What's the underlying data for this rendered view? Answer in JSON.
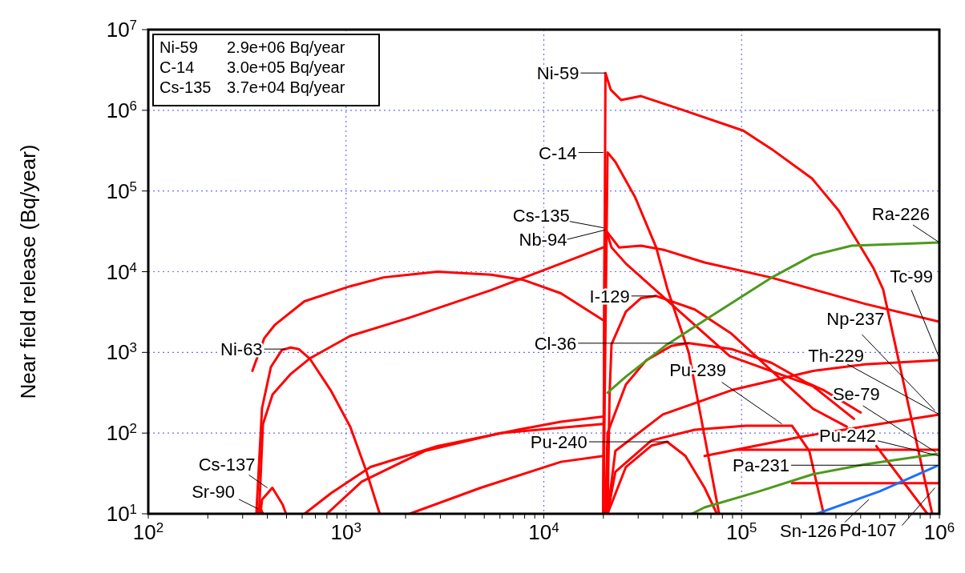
{
  "chart_data": {
    "type": "line",
    "ylabel": "Near field release (Bq/year)",
    "log": "xy",
    "grid": true,
    "marker": "none",
    "line_style": "solid",
    "xlim": [
      100,
      1000000
    ],
    "ylim": [
      10,
      10000000
    ],
    "xticks": [
      {
        "value": 100,
        "label": "10$^{2}$"
      },
      {
        "value": 200,
        "label": null
      },
      {
        "value": 300,
        "label": null
      },
      {
        "value": 400,
        "label": null
      },
      {
        "value": 500,
        "label": null
      },
      {
        "value": 600,
        "label": null
      },
      {
        "value": 700,
        "label": null
      },
      {
        "value": 800,
        "label": null
      },
      {
        "value": 900,
        "label": null
      },
      {
        "value": 1000,
        "label": "10$^{3}$"
      },
      {
        "value": 2000,
        "label": null
      },
      {
        "value": 3000,
        "label": null
      },
      {
        "value": 4000,
        "label": null
      },
      {
        "value": 5000,
        "label": null
      },
      {
        "value": 6000,
        "label": null
      },
      {
        "value": 7000,
        "label": null
      },
      {
        "value": 8000,
        "label": null
      },
      {
        "value": 9000,
        "label": null
      },
      {
        "value": 10000,
        "label": "10$^{4}$"
      },
      {
        "value": 20000,
        "label": null
      },
      {
        "value": 30000,
        "label": null
      },
      {
        "value": 40000,
        "label": null
      },
      {
        "value": 50000,
        "label": null
      },
      {
        "value": 60000,
        "label": null
      },
      {
        "value": 70000,
        "label": null
      },
      {
        "value": 80000,
        "label": null
      },
      {
        "value": 90000,
        "label": null
      },
      {
        "value": 100000,
        "label": "10$^{5}$"
      },
      {
        "value": 200000,
        "label": null
      },
      {
        "value": 300000,
        "label": null
      },
      {
        "value": 400000,
        "label": null
      },
      {
        "value": 500000,
        "label": null
      },
      {
        "value": 600000,
        "label": null
      },
      {
        "value": 700000,
        "label": null
      },
      {
        "value": 800000,
        "label": null
      },
      {
        "value": 900000,
        "label": null
      },
      {
        "value": 1000000,
        "label": "10$^{6}$"
      }
    ],
    "yticks": [
      {
        "value": 10,
        "label": "10$^{1}$"
      },
      {
        "value": 100,
        "label": "10$^{2}$"
      },
      {
        "value": 1000,
        "label": "10$^{3}$"
      },
      {
        "value": 10000,
        "label": "10$^{4}$"
      },
      {
        "value": 100000,
        "label": "10$^{5}$"
      },
      {
        "value": 1000000,
        "label": "10$^{6}$"
      },
      {
        "value": 10000000,
        "label": "10$^{7}$"
      }
    ],
    "series": [
      {
        "color": "#ff0000",
        "x": [
          20000,
          20500,
          21800,
          24600,
          31000,
          51000,
          102000,
          142000,
          227000,
          310000,
          465000,
          520000,
          920000
        ],
        "values": [
          10,
          2900000,
          1800000,
          1340000,
          1500000,
          1000000,
          560000,
          330000,
          143000,
          57000,
          11000,
          6000,
          10
        ]
      },
      {
        "color": "#ff0000",
        "x": [
          20000,
          21000,
          23000,
          29000,
          37000,
          42000,
          54000,
          58000,
          77000
        ],
        "values": [
          10,
          300000,
          230000,
          83000,
          20000,
          6300,
          1000,
          400,
          10
        ]
      },
      {
        "color": "#ff0000",
        "x": [
          20000,
          20300,
          22000,
          26000,
          45000,
          87000,
          230000,
          370000
        ],
        "values": [
          10,
          37000,
          20000,
          12600,
          3800,
          900,
          380,
          150
        ]
      },
      {
        "color": "#ff0000",
        "x": [
          20000,
          20500,
          24000,
          31000,
          41000,
          65000,
          140000,
          420000,
          1000000
        ],
        "values": [
          10,
          33000,
          20000,
          21000,
          18500,
          13000,
          8500,
          4000,
          2400
        ]
      },
      {
        "color": "#ff0000",
        "x": [
          336,
          386,
          437,
          616,
          1050,
          1550,
          2900,
          5400,
          7900,
          12200,
          20000
        ],
        "values": [
          590,
          1500,
          2200,
          4300,
          6600,
          8500,
          10000,
          9200,
          7900,
          5400,
          2500
        ]
      },
      {
        "color": "#ff0000",
        "x": [
          363,
          380,
          425,
          525,
          660,
          1050,
          2100,
          5400,
          12200,
          20000
        ],
        "values": [
          10,
          129,
          300,
          540,
          850,
          1600,
          2700,
          5900,
          12600,
          20000
        ]
      },
      {
        "color": "#ff0000",
        "x": [
          352,
          376,
          417,
          474,
          525,
          576,
          657,
          836,
          1050,
          1260,
          1480
        ],
        "values": [
          10,
          204,
          660,
          1070,
          1150,
          1100,
          830,
          340,
          120,
          35,
          10
        ]
      },
      {
        "color": "#ff0000",
        "x": [
          369,
          376,
          424,
          478,
          497
        ],
        "values": [
          10,
          15,
          21,
          13,
          10
        ]
      },
      {
        "color": "#ff0000",
        "x": [
          352,
          359,
          368,
          380
        ],
        "values": [
          10,
          11.5,
          12,
          10
        ]
      },
      {
        "color": "#ff0000",
        "x": [
          617,
          840,
          1330,
          2900,
          7400,
          12200,
          20000
        ],
        "values": [
          10,
          18,
          38,
          69,
          110,
          138,
          160
        ]
      },
      {
        "color": "#ff0000",
        "x": [
          800,
          1200,
          2500,
          6000,
          20000
        ],
        "values": [
          10,
          25,
          60,
          100,
          130
        ]
      },
      {
        "color": "#ff0000",
        "x": [
          2100,
          4800,
          12200,
          20000
        ],
        "values": [
          10,
          21,
          44,
          52
        ]
      },
      {
        "color": "#ff0000",
        "x": [
          21000,
          21500,
          22000,
          26000,
          31000,
          37000,
          58000,
          89000,
          142000,
          230000,
          340000
        ],
        "values": [
          10,
          300,
          1260,
          3200,
          4700,
          5000,
          3400,
          1700,
          590,
          200,
          120
        ]
      },
      {
        "color": "#ff0000",
        "x": [
          20500,
          21000,
          26000,
          33000,
          44000,
          54000,
          89000,
          142000,
          210000,
          260000,
          400000
        ],
        "values": [
          10,
          100,
          400,
          800,
          1200,
          1300,
          1100,
          740,
          430,
          340,
          180
        ]
      },
      {
        "color": "#ff0000",
        "x": [
          21000,
          23000,
          35000,
          58000,
          105000,
          180000,
          220000,
          260000
        ],
        "values": [
          10,
          33,
          81,
          110,
          123,
          123,
          60,
          10
        ]
      },
      {
        "color": "#ff0000",
        "x": [
          21000,
          26000,
          35000,
          42000,
          52000,
          65000,
          75000
        ],
        "values": [
          10,
          38,
          70,
          78,
          52,
          21,
          10
        ]
      },
      {
        "color": "#ff0000",
        "x": [
          21000,
          23000,
          40000,
          89000,
          230000,
          420000,
          1000000
        ],
        "values": [
          10,
          60,
          170,
          340,
          590,
          710,
          800
        ]
      },
      {
        "color": "#ff0000",
        "x": [
          65000,
          200000,
          500000,
          1000000
        ],
        "values": [
          52,
          90,
          130,
          170
        ]
      },
      {
        "color": "#ff0000",
        "x": [
          95000,
          1000000
        ],
        "values": [
          62,
          62
        ]
      },
      {
        "color": "#ff0000",
        "x": [
          180000,
          1000000
        ],
        "values": [
          24,
          24
        ]
      },
      {
        "color": "#ff0000",
        "x": [
          480000,
          870000
        ],
        "values": [
          69,
          10
        ]
      },
      {
        "color": "#4c9a1c",
        "x": [
          21000,
          26000,
          41000,
          65000,
          140000,
          230000,
          360000,
          1000000
        ],
        "values": [
          316,
          500,
          1200,
          2500,
          8300,
          16000,
          21000,
          23000
        ]
      },
      {
        "color": "#4c9a1c",
        "x": [
          56000,
          65000,
          123000,
          230000,
          420000,
          970000
        ],
        "values": [
          10,
          12,
          19,
          31,
          41,
          55
        ]
      },
      {
        "color": "#1f6fff",
        "x": [
          240000,
          500000,
          970000
        ],
        "values": [
          10,
          19,
          39
        ]
      }
    ],
    "annotations": [
      "Ni-59",
      "2.9e+06 Bq/year",
      "C-14",
      "3.0e+05 Bq/year",
      "Cs-135",
      "3.7e+04 Bq/year",
      {
        "text": "Ni-59",
        "x": 20500,
        "y": 2900000
      },
      {
        "text": "C-14",
        "x": 20000,
        "y": 300000
      },
      {
        "text": "Cs-135",
        "x": 20000,
        "y": 35000
      },
      {
        "text": "Nb-94",
        "x": 20500,
        "y": 33000
      },
      {
        "text": "I-129",
        "x": 37000,
        "y": 5000
      },
      {
        "text": "Cl-36",
        "x": 54000,
        "y": 1300
      },
      {
        "text": "Ni-63",
        "x": 496,
        "y": 1100
      },
      {
        "text": "Cs-137",
        "x": 400,
        "y": 21
      },
      {
        "text": "Sr-90",
        "x": 359,
        "y": 11.5
      },
      {
        "text": "Pu-240",
        "x": 43000,
        "y": 78
      },
      {
        "text": "Pu-239",
        "x": 160000,
        "y": 130
      },
      {
        "text": "Pa-231",
        "x": 1000000,
        "y": 40
      },
      {
        "text": "Pu-242",
        "x": 1000000,
        "y": 52
      },
      {
        "text": "Se-79",
        "x": 960000,
        "y": 58
      },
      {
        "text": "Th-229",
        "x": 1000000,
        "y": 170
      },
      {
        "text": "Np-237",
        "x": 950000,
        "y": 190
      },
      {
        "text": "Tc-99",
        "x": 1000000,
        "y": 850
      },
      {
        "text": "Ra-226",
        "x": 1000000,
        "y": 23000
      },
      {
        "text": "Sn-126",
        "x": 440000,
        "y": 15
      },
      {
        "text": "Pd-107",
        "x": 950000,
        "y": 21
      }
    ]
  }
}
